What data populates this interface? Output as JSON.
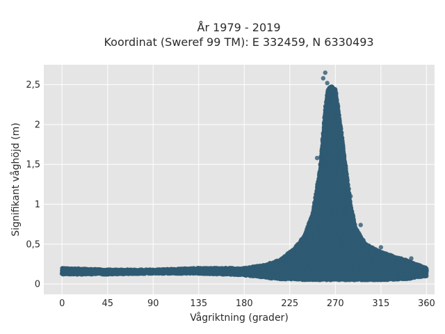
{
  "chart_data": {
    "type": "scatter",
    "title_line1": "År 1979 - 2019",
    "title_line2": "Koordinat (Sweref 99 TM): E 332459, N 6330493",
    "xlabel": "Vågriktning (grader)",
    "ylabel": "Signifikant våghöjd (m)",
    "xlim": [
      -18,
      368
    ],
    "ylim": [
      -0.13,
      2.75
    ],
    "x_ticks": [
      0,
      45,
      90,
      135,
      180,
      225,
      270,
      315,
      360
    ],
    "x_tick_labels": [
      "0",
      "45",
      "90",
      "135",
      "180",
      "225",
      "270",
      "315",
      "360"
    ],
    "y_ticks": [
      0,
      0.5,
      1,
      1.5,
      2,
      2.5
    ],
    "y_tick_labels": [
      "0",
      "0,5",
      "1",
      "1,5",
      "2",
      "2,5"
    ],
    "grid": true,
    "background": "#e5e5e5",
    "marker_color": "#2f5a73",
    "envelope": {
      "direction": [
        0,
        45,
        90,
        135,
        180,
        200,
        215,
        230,
        240,
        248,
        255,
        260,
        263,
        266,
        270,
        275,
        280,
        285,
        290,
        300,
        315,
        340,
        360
      ],
      "min_height": [
        0.12,
        0.12,
        0.13,
        0.13,
        0.11,
        0.08,
        0.06,
        0.06,
        0.05,
        0.05,
        0.05,
        0.05,
        0.05,
        0.05,
        0.05,
        0.05,
        0.05,
        0.05,
        0.05,
        0.05,
        0.05,
        0.06,
        0.1
      ],
      "max_height": [
        0.2,
        0.18,
        0.18,
        0.2,
        0.2,
        0.24,
        0.3,
        0.45,
        0.62,
        0.9,
        1.45,
        2.2,
        2.45,
        2.48,
        2.45,
        2.0,
        1.5,
        1.0,
        0.7,
        0.5,
        0.4,
        0.3,
        0.2
      ]
    },
    "outliers": [
      {
        "x": 260,
        "y": 2.65
      },
      {
        "x": 258,
        "y": 2.58
      },
      {
        "x": 262,
        "y": 2.52
      },
      {
        "x": 266,
        "y": 2.42
      },
      {
        "x": 270,
        "y": 2.3
      },
      {
        "x": 252,
        "y": 1.58
      },
      {
        "x": 285,
        "y": 1.1
      },
      {
        "x": 295,
        "y": 0.74
      },
      {
        "x": 315,
        "y": 0.46
      },
      {
        "x": 345,
        "y": 0.32
      }
    ]
  }
}
